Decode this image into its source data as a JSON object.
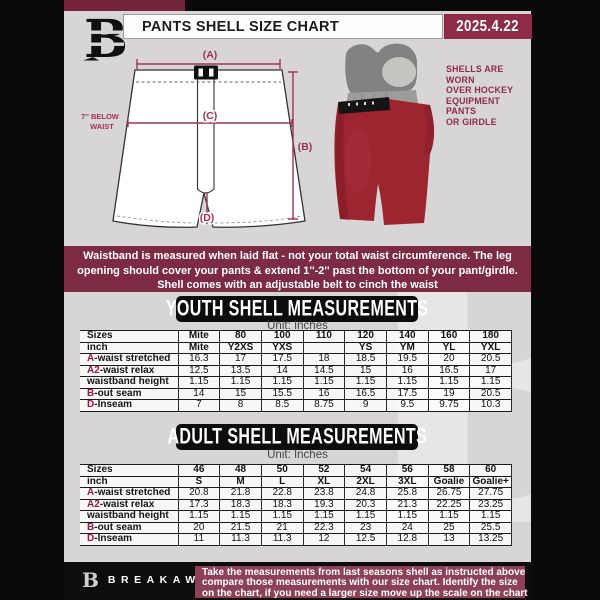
{
  "header": {
    "title": "PANTS SHELL SIZE CHART",
    "date": "2025.4.22",
    "brand_letter": "B"
  },
  "diagram": {
    "label_a": "(A)",
    "label_b": "(B)",
    "label_c": "(C)",
    "label_d": "(D)",
    "below_waist_l1": "7'' BELOW",
    "below_waist_l2": "WAIST"
  },
  "shell_caption": {
    "lines": [
      "SHELLS ARE WORN",
      "OVER HOCKEY",
      "EQUIPMENT PANTS",
      "OR GIRDLE"
    ]
  },
  "notice": {
    "lines": [
      "Waistband is measured when laid flat - not your total waist circumference. The leg",
      "opening should cover your pants & extend 1''-2'' past the bottom of your pant/girdle.",
      "Shell comes with an adjustable belt to cinch the waist"
    ]
  },
  "youth": {
    "banner": "YOUTH SHELL MEASUREMENTS",
    "unit": "Unit: Inches"
  },
  "adult": {
    "banner": "ADULT SHELL MEASUREMENTS",
    "unit": "Unit: Inches"
  },
  "tables": {
    "youth": {
      "rows": [
        {
          "prefix": "",
          "label": "Sizes",
          "header": true,
          "values": [
            "Mite",
            "80",
            "100",
            "110",
            "120",
            "140",
            "160",
            "180"
          ]
        },
        {
          "prefix": "",
          "label": "inch",
          "header": true,
          "values": [
            "Mite",
            "Y2XS",
            "YXS",
            "",
            "YS",
            "YM",
            "YL",
            "YXL"
          ]
        },
        {
          "prefix": "A",
          "label": "-waist stretched",
          "header": false,
          "values": [
            "16.3",
            "17",
            "17.5",
            "18",
            "18.5",
            "19.5",
            "20",
            "20.5"
          ]
        },
        {
          "prefix": "A2",
          "label": "-waist relax",
          "header": false,
          "values": [
            "12.5",
            "13.5",
            "14",
            "14.5",
            "15",
            "16",
            "16.5",
            "17"
          ]
        },
        {
          "prefix": "",
          "label": "waistband height",
          "header": false,
          "values": [
            "1.15",
            "1.15",
            "1.15",
            "1.15",
            "1.15",
            "1.15",
            "1.15",
            "1.15"
          ]
        },
        {
          "prefix": "B",
          "label": "-out seam",
          "header": false,
          "values": [
            "14",
            "15",
            "15.5",
            "16",
            "16.5",
            "17.5",
            "19",
            "20.5"
          ]
        },
        {
          "prefix": "D",
          "label": "-Inseam",
          "header": false,
          "values": [
            "7",
            "8",
            "8.5",
            "8.75",
            "9",
            "9.5",
            "9.75",
            "10.3"
          ]
        }
      ]
    },
    "adult": {
      "rows": [
        {
          "prefix": "",
          "label": "Sizes",
          "header": true,
          "values": [
            "46",
            "48",
            "50",
            "52",
            "54",
            "56",
            "58",
            "60"
          ]
        },
        {
          "prefix": "",
          "label": "inch",
          "header": true,
          "values": [
            "S",
            "M",
            "L",
            "XL",
            "2XL",
            "3XL",
            "Goalie",
            "Goalie+"
          ]
        },
        {
          "prefix": "A",
          "label": "-waist stretched",
          "header": false,
          "values": [
            "20.8",
            "21.8",
            "22.8",
            "23.8",
            "24.8",
            "25.8",
            "26.75",
            "27.75"
          ]
        },
        {
          "prefix": "A2",
          "label": "-waist relax",
          "header": false,
          "values": [
            "17.3",
            "18.3",
            "18.3",
            "19.3",
            "20.3",
            "21.3",
            "22.25",
            "23.25"
          ]
        },
        {
          "prefix": "",
          "label": "waistband height",
          "header": false,
          "values": [
            "1.15",
            "1.15",
            "1.15",
            "1.15",
            "1.15",
            "1.15",
            "1.15",
            "1.15"
          ]
        },
        {
          "prefix": "B",
          "label": "-out seam",
          "header": false,
          "values": [
            "20",
            "21.5",
            "21",
            "22.3",
            "23",
            "24",
            "25",
            "25.5"
          ]
        },
        {
          "prefix": "D",
          "label": "-Inseam",
          "header": false,
          "values": [
            "11",
            "11.3",
            "11.3",
            "12",
            "12.5",
            "12.8",
            "13",
            "13.25"
          ]
        }
      ]
    }
  },
  "footer": {
    "brand": "BREAKAWAY",
    "lines": [
      "Take the measurements from last seasons shell as instructed above",
      "compare those measurements  with our size chart. Identify the size",
      "on the chart, if you need a larger size move up the scale on the chart"
    ]
  },
  "colors": {
    "accent_maroon": "#8e2c47",
    "band_maroon": "#7c2b43",
    "footer_maroon": "#8d4156",
    "table_letter_maroon": "#9c1b3c",
    "shell_red": "#9c2530",
    "page_gray": "#d7d5d6",
    "frame_black": "#0d0d0d"
  }
}
